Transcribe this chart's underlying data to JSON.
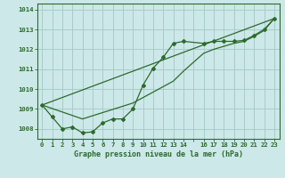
{
  "title": "Graphe pression niveau de la mer (hPa)",
  "background_color": "#cce8e8",
  "grid_color": "#aacccc",
  "line_color": "#2d6a2d",
  "xlim": [
    -0.5,
    23.5
  ],
  "ylim": [
    1007.5,
    1014.3
  ],
  "yticks": [
    1008,
    1009,
    1010,
    1011,
    1012,
    1013,
    1014
  ],
  "xtick_positions": [
    0,
    1,
    2,
    3,
    4,
    5,
    6,
    7,
    8,
    9,
    10,
    11,
    12,
    13,
    14,
    15,
    16,
    17,
    18,
    19,
    20,
    21,
    22,
    23
  ],
  "xtick_labels": [
    "0",
    "1",
    "2",
    "3",
    "4",
    "5",
    "6",
    "7",
    "8",
    "9",
    "10",
    "11",
    "12",
    "13",
    "14",
    "",
    "16",
    "17",
    "18",
    "19",
    "20",
    "21",
    "22",
    "23"
  ],
  "series1": [
    [
      0,
      1009.2
    ],
    [
      1,
      1008.6
    ],
    [
      2,
      1008.0
    ],
    [
      3,
      1008.1
    ],
    [
      4,
      1007.8
    ],
    [
      5,
      1007.85
    ],
    [
      6,
      1008.3
    ],
    [
      7,
      1008.5
    ],
    [
      8,
      1008.5
    ],
    [
      9,
      1009.0
    ],
    [
      10,
      1010.2
    ],
    [
      11,
      1011.05
    ],
    [
      12,
      1011.6
    ],
    [
      13,
      1012.3
    ],
    [
      14,
      1012.4
    ],
    [
      16,
      1012.3
    ],
    [
      17,
      1012.4
    ],
    [
      18,
      1012.4
    ],
    [
      19,
      1012.4
    ],
    [
      20,
      1012.45
    ],
    [
      21,
      1012.7
    ],
    [
      22,
      1013.0
    ],
    [
      23,
      1013.55
    ]
  ],
  "series2": [
    [
      0,
      1009.2
    ],
    [
      4,
      1008.5
    ],
    [
      9,
      1009.3
    ],
    [
      13,
      1010.4
    ],
    [
      14,
      1010.9
    ],
    [
      16,
      1011.8
    ],
    [
      17,
      1012.0
    ],
    [
      18,
      1012.15
    ],
    [
      19,
      1012.3
    ],
    [
      20,
      1012.4
    ],
    [
      21,
      1012.65
    ],
    [
      22,
      1012.95
    ],
    [
      23,
      1013.55
    ]
  ],
  "series3": [
    [
      0,
      1009.2
    ],
    [
      23,
      1013.55
    ]
  ],
  "title_fontsize": 6.0,
  "tick_fontsize": 5.2
}
